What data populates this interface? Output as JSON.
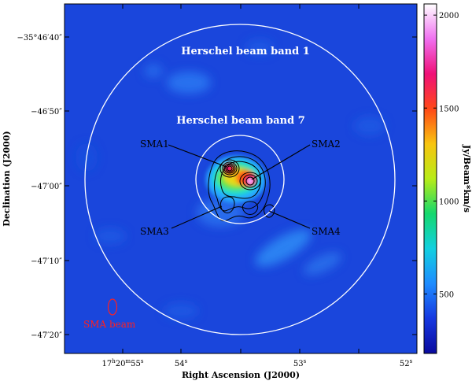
{
  "axes": {
    "xlabel": "Right Ascension (J2000)",
    "ylabel": "Declination (J2000)",
    "x_ticks": [
      {
        "pre": "17",
        "h": "h",
        "mid": "20",
        "m": "m",
        "post": "55",
        "s": "s"
      },
      {
        "pre": "54",
        "s": "s"
      },
      {
        "pre": "53",
        "s": "s"
      },
      {
        "pre": "52",
        "s": "s"
      }
    ],
    "y_ticks": [
      "−35°46′40″",
      "−46′50″",
      "−47′00″",
      "−47′10″",
      "−47′20″"
    ]
  },
  "labels": {
    "band1": "Herschel beam band 1",
    "band7": "Herschel beam band 7",
    "sma1": "SMA1",
    "sma2": "SMA2",
    "sma3": "SMA3",
    "sma4": "SMA4",
    "sma_beam": "SMA beam"
  },
  "colorbar": {
    "label": "Jy/Beam*km/s",
    "ticks": [
      "2000",
      "1500",
      "1000",
      "500"
    ],
    "tick_values": [
      2000,
      1500,
      1000,
      500
    ],
    "range": [
      180,
      2060
    ],
    "colormap": [
      "#0a0a9e",
      "#1638e0",
      "#1e8cff",
      "#12d0e0",
      "#14d86e",
      "#b8ec18",
      "#f8c410",
      "#ff4818",
      "#f01078",
      "#f070f0",
      "#ffffff"
    ]
  },
  "colors": {
    "background": "#1a46dc",
    "beam_circle": "#ffffff",
    "sma_beam": "#ff2020",
    "contour": "#000000"
  }
}
